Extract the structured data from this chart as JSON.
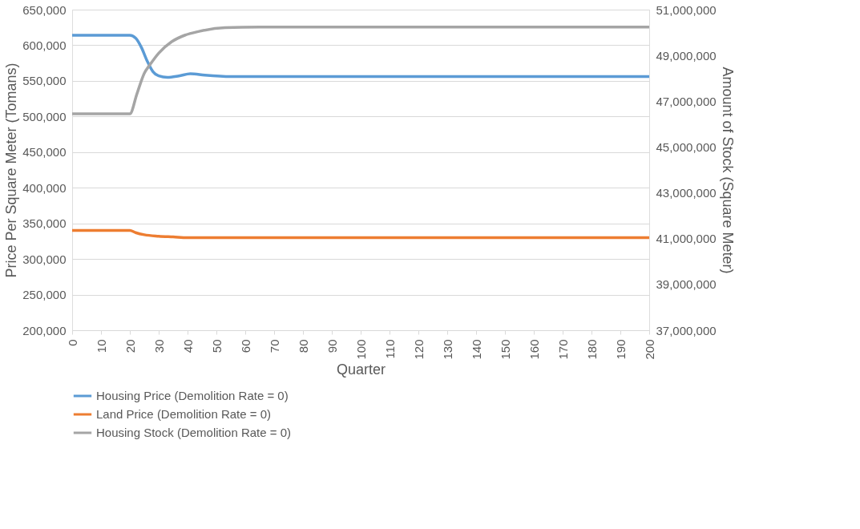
{
  "chart_data": {
    "type": "line",
    "xlabel": "Quarter",
    "ylabel": "Price Per Square Meter (Tomans)",
    "y2label": "Amount of Stock (Square Meter)",
    "xlim": [
      0,
      200
    ],
    "xticks": [
      0,
      10,
      20,
      30,
      40,
      50,
      60,
      70,
      80,
      90,
      100,
      110,
      120,
      130,
      140,
      150,
      160,
      170,
      180,
      190,
      200
    ],
    "ylim": [
      200000,
      650000
    ],
    "yticks": [
      {
        "value": 200000,
        "label": "200,000"
      },
      {
        "value": 250000,
        "label": "250,000"
      },
      {
        "value": 300000,
        "label": "300,000"
      },
      {
        "value": 350000,
        "label": "350,000"
      },
      {
        "value": 400000,
        "label": "400,000"
      },
      {
        "value": 450000,
        "label": "450,000"
      },
      {
        "value": 500000,
        "label": "500,000"
      },
      {
        "value": 550000,
        "label": "550,000"
      },
      {
        "value": 600000,
        "label": "600,000"
      },
      {
        "value": 650000,
        "label": "650,000"
      }
    ],
    "y2lim": [
      37000000,
      51000000
    ],
    "y2ticks": [
      {
        "value": 37000000,
        "label": "37,000,000"
      },
      {
        "value": 39000000,
        "label": "39,000,000"
      },
      {
        "value": 41000000,
        "label": "41,000,000"
      },
      {
        "value": 43000000,
        "label": "43,000,000"
      },
      {
        "value": 45000000,
        "label": "45,000,000"
      },
      {
        "value": 47000000,
        "label": "47,000,000"
      },
      {
        "value": 49000000,
        "label": "49,000,000"
      },
      {
        "value": 51000000,
        "label": "51,000,000"
      }
    ],
    "grid": "y",
    "legend": "bottom",
    "line_style": "solid",
    "marker": "none",
    "series": [
      {
        "name": "Housing Price (Demolition Rate = 0)",
        "color": "#5b9bd5",
        "x": [
          0,
          20,
          22,
          24,
          26,
          28,
          30,
          33,
          37,
          41,
          46,
          55,
          70,
          200
        ],
        "values": [
          614000,
          614000,
          610000,
          597000,
          578000,
          563000,
          557000,
          555000,
          557000,
          560000,
          558000,
          556000,
          556000,
          556000
        ]
      },
      {
        "name": "Land Price (Demolition Rate = 0)",
        "color": "#ed7d31",
        "x": [
          0,
          20,
          22,
          25,
          30,
          35,
          40,
          200
        ],
        "values": [
          340000,
          340000,
          337000,
          334000,
          332000,
          331000,
          330000,
          330000
        ]
      },
      {
        "name": "Housing Stock (Demolition Rate = 0)",
        "color": "#a5a5a5",
        "axis": "y2",
        "x": [
          0,
          20,
          22.5,
          25,
          27,
          30,
          34.5,
          39,
          44,
          53,
          65,
          200
        ],
        "values": [
          46450000,
          46450000,
          47340000,
          48220000,
          48600000,
          49100000,
          49600000,
          49880000,
          50050000,
          50210000,
          50240000,
          50240000
        ]
      }
    ]
  }
}
